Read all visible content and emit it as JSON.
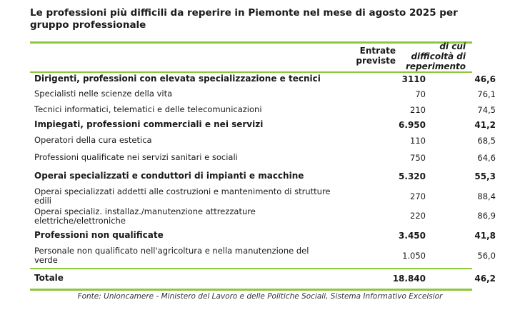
{
  "title": "Le professioni più difficili da reperire in Piemonte nel mese di agosto 2025 per gruppo professionale",
  "columns": {
    "entrate": "Entrate previste",
    "difficolta": "di cui difficoltà di reperimento"
  },
  "rows": [
    {
      "label": "Dirigenti, professioni con elevata specializzazione e tecnici",
      "entrate": "3110",
      "difficolta": "46,6",
      "group": true
    },
    {
      "label": "Specialisti nelle scienze della vita",
      "entrate": "70",
      "difficolta": "76,1",
      "group": false
    },
    {
      "label": "Tecnici informatici, telematici e delle telecomunicazioni",
      "entrate": "210",
      "difficolta": "74,5",
      "group": false
    },
    {
      "label": "Impiegati, professioni commerciali e nei servizi",
      "entrate": "6.950",
      "difficolta": "41,2",
      "group": true
    },
    {
      "label": "Operatori della cura estetica",
      "entrate": "110",
      "difficolta": "68,5",
      "group": false
    },
    {
      "label": "Professioni qualificate nei servizi sanitari e sociali",
      "entrate": "750",
      "difficolta": "64,6",
      "group": false
    },
    {
      "label": "Operai specializzati e conduttori di impianti e macchine",
      "entrate": "5.320",
      "difficolta": "55,3",
      "group": true
    },
    {
      "label": "Operai specializzati addetti alle costruzioni e mantenimento di strutture edili",
      "entrate": "270",
      "difficolta": "88,4",
      "group": false
    },
    {
      "label": "Operai specializ. installaz./manutenzione attrezzature elettriche/elettroniche",
      "entrate": "220",
      "difficolta": "86,9",
      "group": false
    },
    {
      "label": "Professioni non qualificate",
      "entrate": "3.450",
      "difficolta": "41,8",
      "group": true
    },
    {
      "label": "Personale non qualificato nell'agricoltura e nella manutenzione del verde",
      "entrate": "1.050",
      "difficolta": "56,0",
      "group": false
    }
  ],
  "total": {
    "label": "Totale",
    "entrate": "18.840",
    "difficolta": "46,2"
  },
  "source": "Fonte: Unioncamere - Ministero del Lavoro e delle Politiche Sociali, Sistema Informativo Excelsior",
  "colors": {
    "accent_rule": "#8cc83c"
  }
}
